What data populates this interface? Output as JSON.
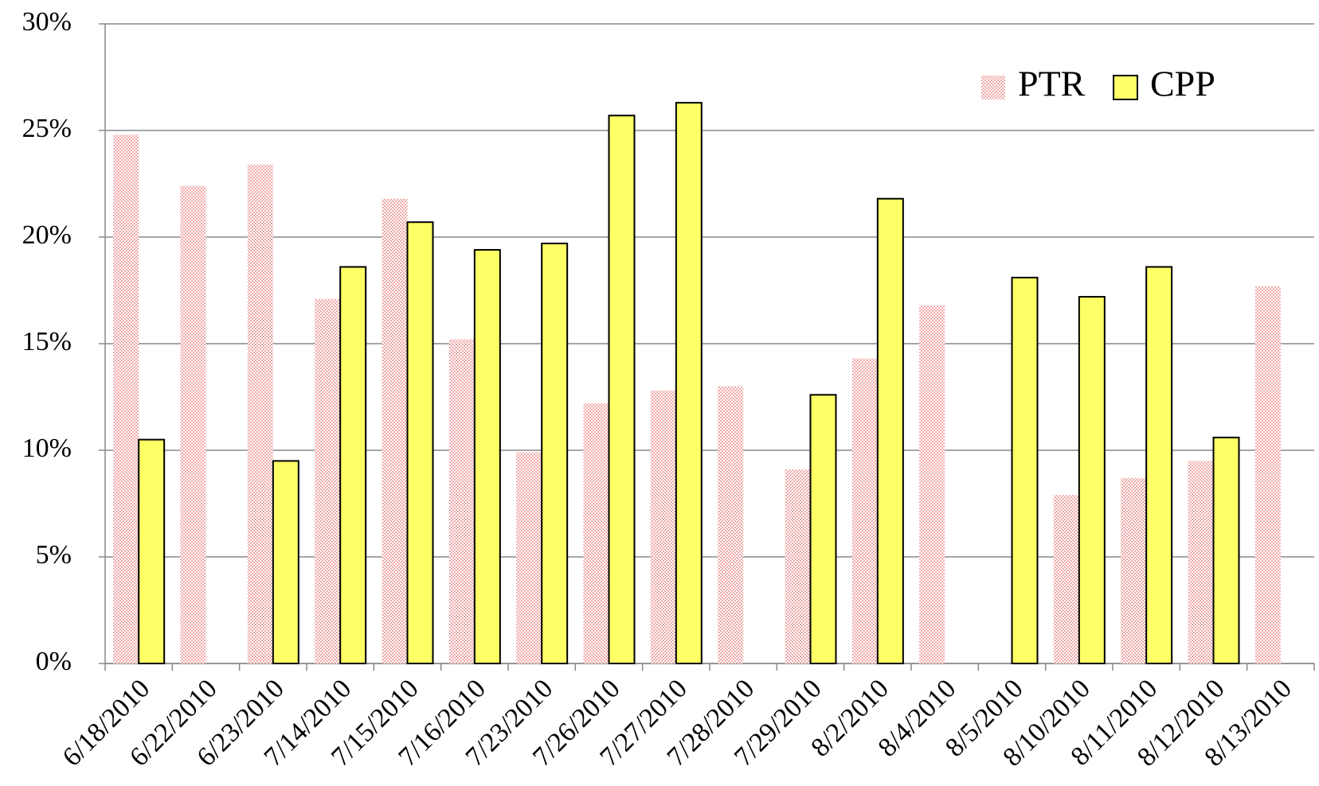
{
  "chart_data": {
    "type": "bar",
    "categories": [
      "6/18/2010",
      "6/22/2010",
      "6/23/2010",
      "7/14/2010",
      "7/15/2010",
      "7/16/2010",
      "7/23/2010",
      "7/26/2010",
      "7/27/2010",
      "7/28/2010",
      "7/29/2010",
      "8/2/2010",
      "8/4/2010",
      "8/5/2010",
      "8/10/2010",
      "8/11/2010",
      "8/12/2010",
      "8/13/2010"
    ],
    "series": [
      {
        "name": "PTR",
        "color": "#f4b8b8",
        "values": [
          24.8,
          22.4,
          23.4,
          17.1,
          21.8,
          15.2,
          9.9,
          12.2,
          12.8,
          13.0,
          9.1,
          14.3,
          16.8,
          null,
          7.9,
          8.7,
          9.5,
          17.7
        ]
      },
      {
        "name": "CPP",
        "color": "#ffff66",
        "values": [
          10.5,
          null,
          9.5,
          18.6,
          20.7,
          19.4,
          19.7,
          25.7,
          26.3,
          null,
          12.6,
          21.8,
          null,
          18.1,
          17.2,
          18.6,
          10.6,
          null
        ]
      }
    ],
    "ylim": [
      0,
      30
    ],
    "yticks": [
      {
        "value": 0,
        "label": "0%"
      },
      {
        "value": 5,
        "label": "5%"
      },
      {
        "value": 10,
        "label": "10%"
      },
      {
        "value": 15,
        "label": "15%"
      },
      {
        "value": 20,
        "label": "20%"
      },
      {
        "value": 25,
        "label": "25%"
      },
      {
        "value": 30,
        "label": "30%"
      }
    ],
    "grid": true,
    "legend": "upper right"
  }
}
